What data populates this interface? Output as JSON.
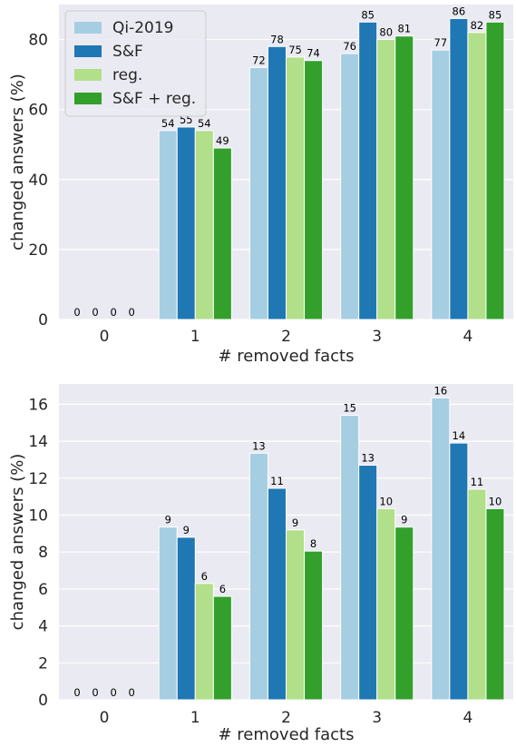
{
  "chart_data": [
    {
      "type": "bar",
      "categories": [
        "0",
        "1",
        "2",
        "3",
        "4"
      ],
      "xlabel": "# removed facts",
      "ylabel": "changed answers (%)",
      "ylim": [
        0,
        90
      ],
      "yticks": [
        0,
        20,
        40,
        60,
        80
      ],
      "grid": true,
      "legend": "top-left",
      "series": [
        {
          "name": "Qi-2019",
          "color": "#a6cee3",
          "values": [
            0,
            54,
            72,
            76,
            77
          ]
        },
        {
          "name": "S&F",
          "color": "#1f78b4",
          "values": [
            0,
            55,
            78,
            85,
            86
          ]
        },
        {
          "name": "reg.",
          "color": "#b2df8a",
          "values": [
            0,
            54,
            75,
            80,
            82
          ]
        },
        {
          "name": "S&F + reg.",
          "color": "#33a02c",
          "values": [
            0,
            49,
            74,
            81,
            85
          ]
        }
      ]
    },
    {
      "type": "bar",
      "categories": [
        "0",
        "1",
        "2",
        "3",
        "4"
      ],
      "xlabel": "# removed facts",
      "ylabel": "changed answers (%)",
      "ylim": [
        0,
        17.1
      ],
      "yticks": [
        0,
        2,
        4,
        6,
        8,
        10,
        12,
        14,
        16
      ],
      "grid": true,
      "legend": "none",
      "series": [
        {
          "name": "Qi-2019",
          "color": "#a6cee3",
          "values": [
            0,
            9.35,
            13.35,
            15.4,
            16.35
          ]
        },
        {
          "name": "S&F",
          "color": "#1f78b4",
          "values": [
            0,
            8.8,
            11.45,
            12.7,
            13.9
          ]
        },
        {
          "name": "reg.",
          "color": "#b2df8a",
          "values": [
            0,
            6.3,
            9.2,
            10.35,
            11.4
          ]
        },
        {
          "name": "S&F + reg.",
          "color": "#33a02c",
          "values": [
            0,
            5.6,
            8.05,
            9.35,
            10.35
          ]
        }
      ],
      "data_labels": [
        [
          "0",
          "9",
          "13",
          "15",
          "16"
        ],
        [
          "0",
          "9",
          "11",
          "13",
          "14"
        ],
        [
          "0",
          "6",
          "9",
          "10",
          "11"
        ],
        [
          "0",
          "6",
          "8",
          "9",
          "10"
        ]
      ]
    }
  ]
}
